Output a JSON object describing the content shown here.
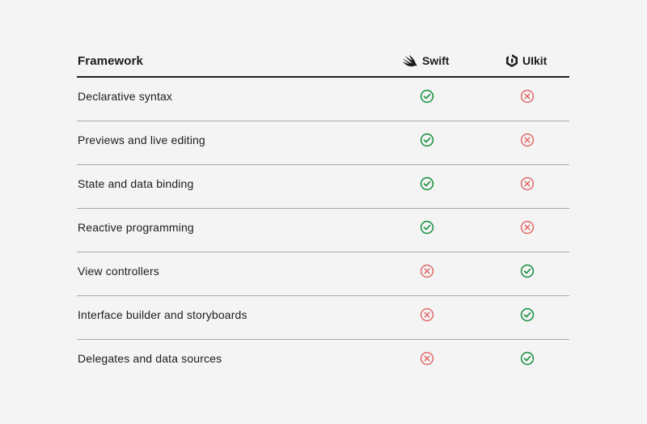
{
  "table": {
    "header": {
      "label": "Framework",
      "columns": [
        {
          "name": "Swift",
          "icon": "swift-logo-icon"
        },
        {
          "name": "UIkit",
          "icon": "uikit-logo-icon"
        }
      ]
    },
    "rows": [
      {
        "feature": "Declarative syntax",
        "swift": true,
        "uikit": false
      },
      {
        "feature": "Previews and live editing",
        "swift": true,
        "uikit": false
      },
      {
        "feature": "State and data binding",
        "swift": true,
        "uikit": false
      },
      {
        "feature": "Reactive programming",
        "swift": true,
        "uikit": false
      },
      {
        "feature": "View controllers",
        "swift": false,
        "uikit": true
      },
      {
        "feature": "Interface builder and storyboards",
        "swift": false,
        "uikit": true
      },
      {
        "feature": "Delegates and data sources",
        "swift": false,
        "uikit": true
      }
    ]
  },
  "colors": {
    "check": "#1f9447",
    "cross": "#e06a6a",
    "divider": "#a9a9a9",
    "header_rule": "#1e1e1e",
    "background": "#f4f4f4"
  }
}
